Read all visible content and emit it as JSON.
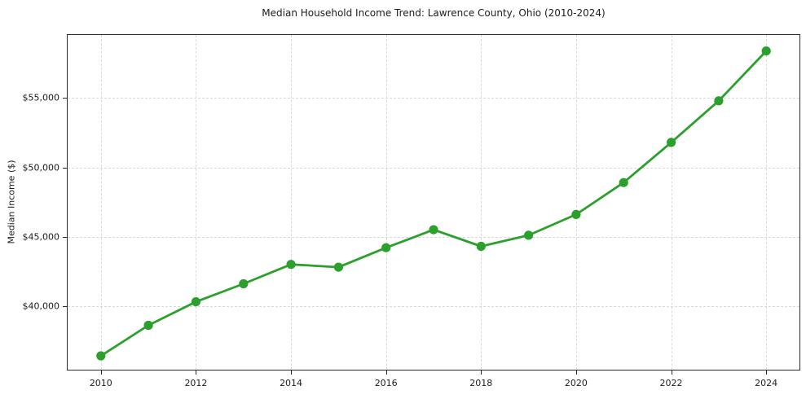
{
  "chart_data": {
    "type": "line",
    "title": "Median Household Income Trend: Lawrence County, Ohio (2010-2024)",
    "xlabel": "",
    "ylabel": "Median Income ($)",
    "x": [
      2010,
      2011,
      2012,
      2013,
      2014,
      2015,
      2016,
      2017,
      2018,
      2019,
      2020,
      2021,
      2022,
      2023,
      2024
    ],
    "series": [
      {
        "name": "Median Household Income",
        "values": [
          36400,
          38600,
          40300,
          41600,
          43000,
          42800,
          44200,
          45500,
          44300,
          45100,
          46600,
          48900,
          51800,
          54800,
          58400
        ]
      }
    ],
    "xlim": [
      2009.3,
      2024.7
    ],
    "ylim": [
      35400,
      59550
    ],
    "xticks": {
      "values": [
        2010,
        2012,
        2014,
        2016,
        2018,
        2020,
        2022,
        2024
      ],
      "labels": [
        "2010",
        "2012",
        "2014",
        "2016",
        "2018",
        "2020",
        "2022",
        "2024"
      ]
    },
    "yticks": {
      "values": [
        40000,
        45000,
        50000,
        55000
      ],
      "labels": [
        "$40,000",
        "$45,000",
        "$50,000",
        "$55,000"
      ]
    },
    "grid": true,
    "legend": "none",
    "line_color": "#2ca02c",
    "marker": "circle",
    "marker_color": "#2ca02c"
  }
}
